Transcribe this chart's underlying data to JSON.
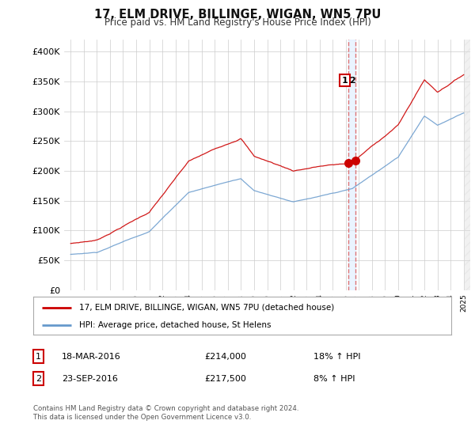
{
  "title": "17, ELM DRIVE, BILLINGE, WIGAN, WN5 7PU",
  "subtitle": "Price paid vs. HM Land Registry's House Price Index (HPI)",
  "ylim": [
    0,
    420000
  ],
  "yticks": [
    0,
    50000,
    100000,
    150000,
    200000,
    250000,
    300000,
    350000,
    400000
  ],
  "ytick_labels": [
    "£0",
    "£50K",
    "£100K",
    "£150K",
    "£200K",
    "£250K",
    "£300K",
    "£350K",
    "£400K"
  ],
  "red_line_color": "#cc0000",
  "blue_line_color": "#6699cc",
  "sale1_year": 2016.21,
  "sale1_price": 214000,
  "sale2_year": 2016.73,
  "sale2_price": 217500,
  "legend_label_red": "17, ELM DRIVE, BILLINGE, WIGAN, WN5 7PU (detached house)",
  "legend_label_blue": "HPI: Average price, detached house, St Helens",
  "table_row1": [
    "1",
    "18-MAR-2016",
    "£214,000",
    "18% ↑ HPI"
  ],
  "table_row2": [
    "2",
    "23-SEP-2016",
    "£217,500",
    "8% ↑ HPI"
  ],
  "footer": "Contains HM Land Registry data © Crown copyright and database right 2024.\nThis data is licensed under the Open Government Licence v3.0.",
  "background_color": "#ffffff",
  "grid_color": "#cccccc"
}
